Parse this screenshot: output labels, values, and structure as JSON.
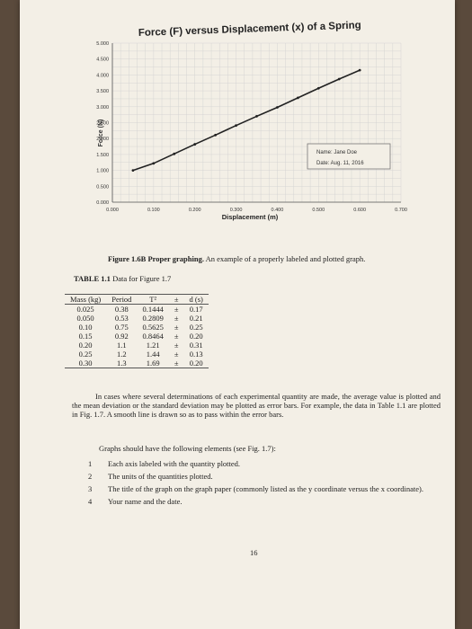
{
  "chart_data": {
    "type": "line",
    "title": "Force (F) versus Displacement (x) of a Spring",
    "xlabel": "Displacement (m)",
    "ylabel": "Force (N)",
    "xlim": [
      0,
      0.7
    ],
    "ylim": [
      0,
      5
    ],
    "x_ticks": [
      "0.000",
      "0.100",
      "0.200",
      "0.300",
      "0.400",
      "0.500",
      "0.600",
      "0.700"
    ],
    "y_ticks": [
      "0.000",
      "0.500",
      "1.000",
      "1.500",
      "2.000",
      "2.500",
      "3.000",
      "3.500",
      "4.000",
      "4.500",
      "5.000"
    ],
    "grid": true,
    "series": [
      {
        "points": [
          [
            0.05,
            1.0
          ],
          [
            0.1,
            1.22
          ],
          [
            0.15,
            1.52
          ],
          [
            0.2,
            1.82
          ],
          [
            0.25,
            2.11
          ],
          [
            0.3,
            2.41
          ],
          [
            0.35,
            2.7
          ],
          [
            0.4,
            2.98
          ],
          [
            0.45,
            3.28
          ],
          [
            0.5,
            3.58
          ],
          [
            0.55,
            3.87
          ],
          [
            0.6,
            4.15
          ]
        ]
      }
    ],
    "annotations": {
      "name_label": "Name: Jane Doe",
      "date_label": "Date:   Aug. 11, 2016"
    }
  },
  "figure": {
    "caption_bold": "Figure 1.6B Proper graphing.",
    "caption_text": " An example of a properly labeled and plotted graph."
  },
  "table": {
    "title_bold": "TABLE 1.1",
    "title_text": " Data for Figure 1.7",
    "headers": [
      "Mass (kg)",
      "Period",
      "T²",
      "±",
      "d (s)"
    ],
    "rows": [
      [
        "0.025",
        "0.38",
        "0.1444",
        "±",
        "0.17"
      ],
      [
        "0.050",
        "0.53",
        "0.2809",
        "±",
        "0.21"
      ],
      [
        "0.10",
        "0.75",
        "0.5625",
        "±",
        "0.25"
      ],
      [
        "0.15",
        "0.92",
        "0.8464",
        "±",
        "0.20"
      ],
      [
        "0.20",
        "1.1",
        "1.21",
        "±",
        "0.31"
      ],
      [
        "0.25",
        "1.2",
        "1.44",
        "±",
        "0.13"
      ],
      [
        "0.30",
        "1.3",
        "1.69",
        "±",
        "0.20"
      ]
    ]
  },
  "body": {
    "paragraph": "In cases where several determinations of each experimental quantity are made, the average value is plotted and the mean deviation or the standard deviation may be plotted as error bars. For example, the data in Table 1.1 are plotted in Fig. 1.7. A smooth line is drawn so as to pass within the error bars.",
    "elements_intro": "Graphs should have the following elements (see Fig. 1.7):",
    "list": [
      {
        "num": "1",
        "text": "Each axis labeled with the quantity plotted."
      },
      {
        "num": "2",
        "text": "The units of the quantities plotted."
      },
      {
        "num": "3",
        "text": "The title of the graph on the graph paper (commonly listed as the y coordinate versus the x coordinate)."
      },
      {
        "num": "4",
        "text": "Your name and the date."
      }
    ],
    "page_number": "16"
  }
}
